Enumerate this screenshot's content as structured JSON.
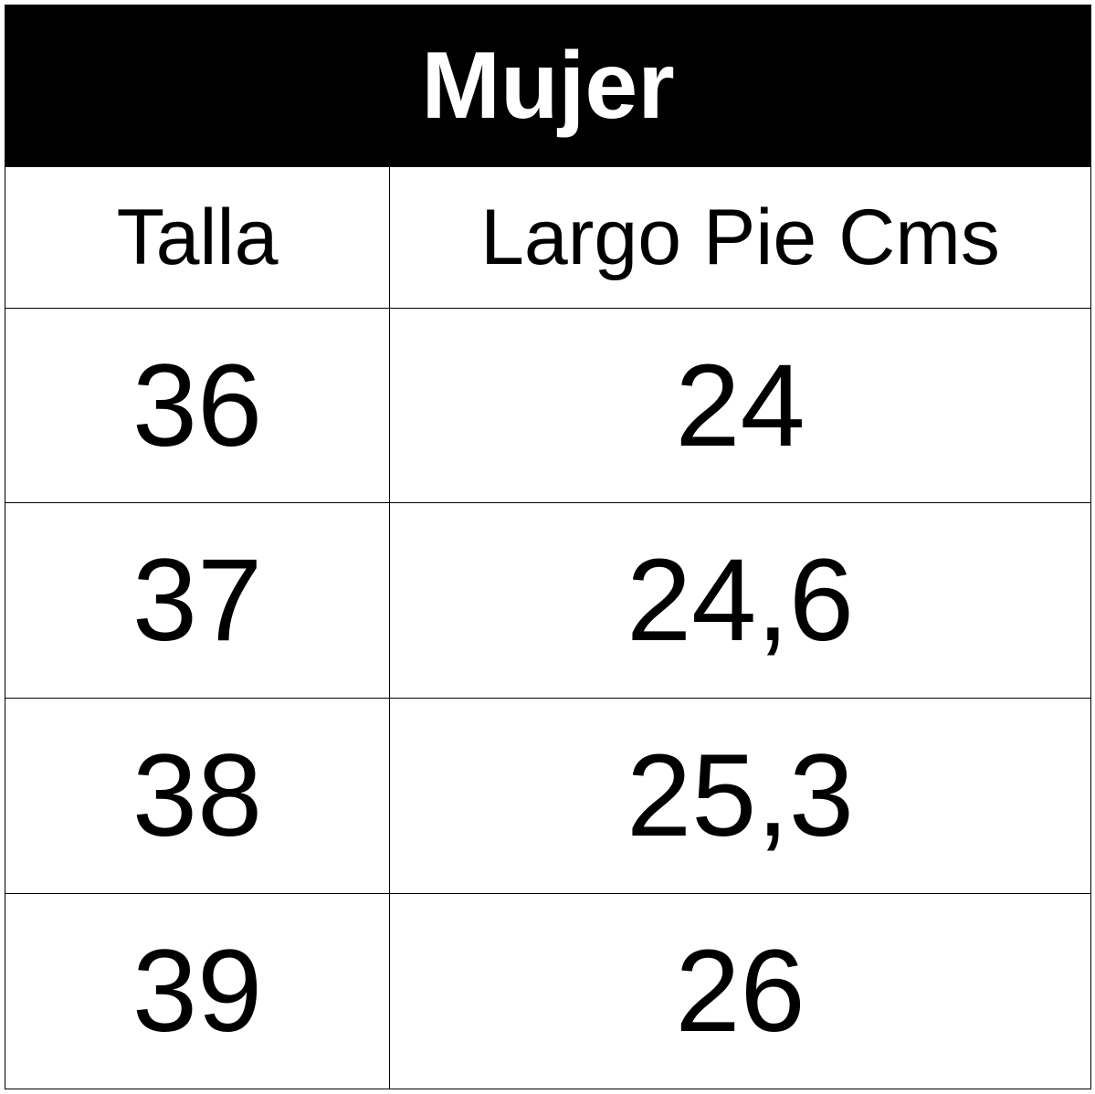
{
  "table": {
    "title": "Mujer",
    "header": [
      "Talla",
      "Largo Pie Cms"
    ],
    "rows": [
      [
        "36",
        "24"
      ],
      [
        "37",
        "24,6"
      ],
      [
        "38",
        "25,3"
      ],
      [
        "39",
        "26"
      ]
    ]
  }
}
